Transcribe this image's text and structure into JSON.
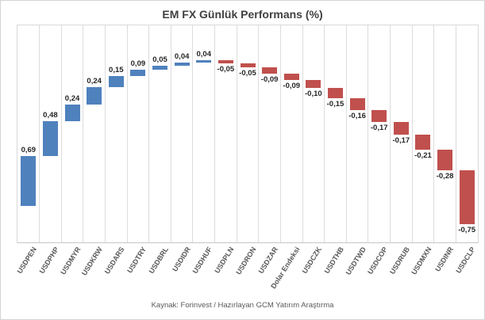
{
  "title": "EM FX Günlük Performans (%)",
  "footer": "Kaynak: Forinvest / Hazırlayan GCM Yatırım Araştırma",
  "colors": {
    "positive": "#4F81BD",
    "negative": "#C0504D",
    "gridline": "#DCDCDC",
    "axis_line": "#C6C6C6",
    "title_text": "#404040",
    "value_label_text": "#262626",
    "axis_label_text": "#595959",
    "frame_border": "#D4D4D4"
  },
  "chart_data": {
    "type": "bar",
    "subtype": "waterfall",
    "title": "EM FX Günlük Performans (%)",
    "xlabel": "",
    "ylabel": "",
    "categories": [
      "USDPEN",
      "USDPHP",
      "USDMYR",
      "USDKRW",
      "USDARS",
      "USDTRY",
      "USDBRL",
      "USDIDR",
      "USDHUF",
      "USDPLN",
      "USDRON",
      "USDZAR",
      "Dolar Endeksi",
      "USDCZK",
      "USDTHB",
      "USDTWD",
      "USDCOP",
      "USDRUB",
      "USDMXN",
      "USDINR",
      "USDCLP"
    ],
    "values": [
      0.69,
      0.48,
      0.24,
      0.24,
      0.15,
      0.09,
      0.05,
      0.04,
      0.04,
      -0.05,
      -0.05,
      -0.09,
      -0.09,
      -0.1,
      -0.15,
      -0.16,
      -0.17,
      -0.17,
      -0.21,
      -0.28,
      -0.75
    ],
    "value_labels": [
      "0,69",
      "0,48",
      "0,24",
      "0,24",
      "0,15",
      "0,09",
      "0,05",
      "0,04",
      "0,04",
      "-0,05",
      "-0,05",
      "-0,09",
      "-0,09",
      "-0,10",
      "-0,15",
      "-0,16",
      "-0,17",
      "-0,17",
      "-0,21",
      "-0,28",
      "-0,75"
    ],
    "ylim": [
      -0.5,
      2.5
    ],
    "grid": "vertical-only",
    "legend": "none",
    "bar_color_positive": "#4F81BD",
    "bar_color_negative": "#C0504D"
  }
}
